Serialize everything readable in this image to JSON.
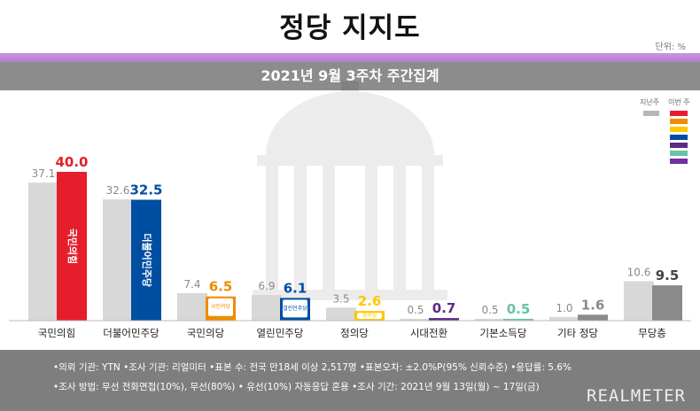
{
  "header": {
    "title": "정당 지지도",
    "unit": "단위: %",
    "subtitle": "2021년 9월 3주차 주간집계"
  },
  "legend": {
    "prev_label": "지난주",
    "curr_label": "이번 주",
    "swatch_colors": [
      "#e61e2b",
      "#f08c00",
      "#ffc800",
      "#004ea2",
      "#5b2c86",
      "#69c3a5",
      "#7030a0"
    ]
  },
  "chart_data": {
    "type": "bar",
    "categories": [
      "국민의힘",
      "더불어민주당",
      "국민의당",
      "열린민주당",
      "정의당",
      "시대전환",
      "기본소득당",
      "기타 정당",
      "무당층"
    ],
    "series": [
      {
        "name": "지난주",
        "values": [
          37.1,
          32.6,
          7.4,
          6.9,
          3.5,
          0.5,
          0.5,
          1.0,
          10.6
        ]
      },
      {
        "name": "이번 주",
        "values": [
          40.0,
          32.5,
          6.5,
          6.1,
          2.6,
          0.7,
          0.5,
          1.6,
          9.5
        ]
      }
    ],
    "colors": {
      "previous": "#d8d8d8",
      "previous_label": "#8a8a8a",
      "current": [
        "#e61e2b",
        "#004ea2",
        "#f08c00",
        "#004ea2",
        "#ffc800",
        "#5b2c86",
        "#69c3a5",
        "#8a8a8a",
        "#8a8a8a"
      ],
      "current_label": [
        "#e61e2b",
        "#004ea2",
        "#f08c00",
        "#004ea2",
        "#ffc800",
        "#5b2c86",
        "#69c3a5",
        "#8a8a8a",
        "#444444"
      ]
    },
    "logos": [
      "국민의힘",
      "더불어민주당",
      "국민의당",
      "열린민주당",
      "정의당"
    ],
    "ylim": [
      0,
      40
    ]
  },
  "footer": {
    "line1": "•의뢰 기관: YTN •조사 기관: 리얼미터 •표본 수: 전국 만18세 이상 2,517명 •표본오차: ±2.0%P(95% 신뢰수준) •응답률: 5.6%",
    "line2": "•조사 방법: 무선 전화면접(10%), 무선(80%) • 유선(10%) 자동응답 혼용 •조사 기간: 2021년 9월 13일(월) ~ 17일(금)",
    "brand": "REALMETER"
  }
}
